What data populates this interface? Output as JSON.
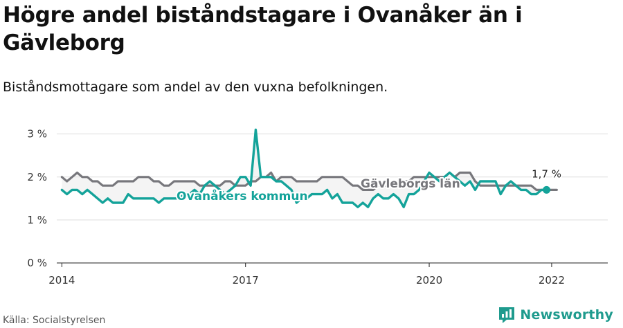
{
  "header": {
    "title": "Högre andel biståndstagare i Ovanåker än i Gävleborg",
    "subtitle": "Biståndsmottagare som andel av den vuxna befolkningen."
  },
  "footer": {
    "source": "Källa: Socialstyrelsen",
    "brand": "Newsworthy"
  },
  "colors": {
    "ovanaker": "#14a39a",
    "gavleborg": "#77777c",
    "fill": "#e6e6e6",
    "grid": "#dddddd",
    "brand": "#1f9b8e"
  },
  "icons": {
    "brand": "newsworthy-logo-icon"
  },
  "chart_data": {
    "type": "line",
    "x_start": "2014-01",
    "x_step": "month",
    "xlim": [
      "2013-12",
      "2022-12"
    ],
    "ylim": [
      0,
      3.3
    ],
    "x_ticks": [
      {
        "label": "2014",
        "value": "2014-01"
      },
      {
        "label": "2017",
        "value": "2017-01"
      },
      {
        "label": "2020",
        "value": "2020-01"
      },
      {
        "label": "2022",
        "value": "2022-01"
      }
    ],
    "y_ticks": [
      {
        "label": "0 %",
        "value": 0
      },
      {
        "label": "1 %",
        "value": 1
      },
      {
        "label": "2 %",
        "value": 2
      },
      {
        "label": "3 %",
        "value": 3
      }
    ],
    "grid": true,
    "series": [
      {
        "name": "Gävleborgs län",
        "key": "gavleborg",
        "values": [
          2.0,
          1.9,
          2.0,
          2.1,
          2.0,
          2.0,
          1.9,
          1.9,
          1.8,
          1.8,
          1.8,
          1.9,
          1.9,
          1.9,
          1.9,
          2.0,
          2.0,
          2.0,
          1.9,
          1.9,
          1.8,
          1.8,
          1.9,
          1.9,
          1.9,
          1.9,
          1.9,
          1.8,
          1.8,
          1.8,
          1.8,
          1.8,
          1.9,
          1.9,
          1.8,
          1.8,
          1.8,
          1.9,
          1.9,
          2.0,
          2.0,
          2.1,
          1.9,
          2.0,
          2.0,
          2.0,
          1.9,
          1.9,
          1.9,
          1.9,
          1.9,
          2.0,
          2.0,
          2.0,
          2.0,
          2.0,
          1.9,
          1.8,
          1.8,
          1.7,
          1.7,
          1.7,
          1.8,
          1.8,
          1.8,
          1.8,
          1.9,
          1.9,
          1.9,
          2.0,
          2.0,
          2.0,
          2.0,
          2.0,
          2.0,
          2.0,
          2.1,
          2.0,
          2.1,
          2.1,
          2.1,
          1.9,
          1.8,
          1.8,
          1.8,
          1.8,
          1.8,
          1.8,
          1.8,
          1.8,
          1.8,
          1.8,
          1.8,
          1.7,
          1.7,
          1.7,
          1.7,
          1.7
        ]
      },
      {
        "name": "Ovanåkers kommun",
        "key": "ovanaker",
        "values": [
          1.7,
          1.6,
          1.7,
          1.7,
          1.6,
          1.7,
          1.6,
          1.5,
          1.4,
          1.5,
          1.4,
          1.4,
          1.4,
          1.6,
          1.5,
          1.5,
          1.5,
          1.5,
          1.5,
          1.4,
          1.5,
          1.5,
          1.5,
          1.5,
          1.6,
          1.6,
          1.7,
          1.6,
          1.8,
          1.9,
          1.8,
          1.7,
          1.6,
          1.7,
          1.8,
          2.0,
          2.0,
          1.8,
          3.1,
          2.0,
          2.0,
          2.0,
          1.9,
          1.9,
          1.8,
          1.7,
          1.4,
          1.5,
          1.5,
          1.6,
          1.6,
          1.6,
          1.7,
          1.5,
          1.6,
          1.4,
          1.4,
          1.4,
          1.3,
          1.4,
          1.3,
          1.5,
          1.6,
          1.5,
          1.5,
          1.6,
          1.5,
          1.3,
          1.6,
          1.6,
          1.7,
          1.9,
          2.1,
          2.0,
          1.9,
          2.0,
          2.1,
          2.0,
          1.9,
          1.8,
          1.9,
          1.7,
          1.9,
          1.9,
          1.9,
          1.9,
          1.6,
          1.8,
          1.9,
          1.8,
          1.7,
          1.7,
          1.6,
          1.6,
          1.7,
          1.7
        ]
      }
    ],
    "end_label": "1,7 %"
  }
}
